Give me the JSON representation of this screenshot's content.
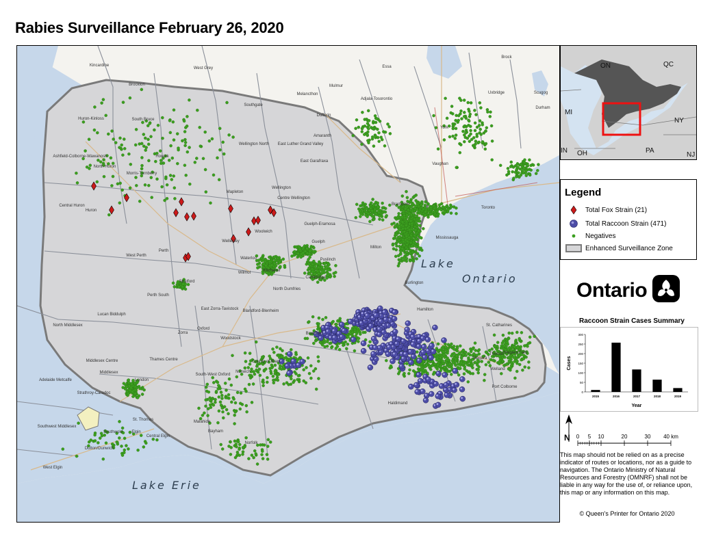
{
  "title": "Rabies Surveillance February 26, 2020",
  "map": {
    "lakes": {
      "ontario": [
        "Lake",
        "Ontario"
      ],
      "erie": "Lake Erie"
    },
    "places": [
      {
        "name": "Kincardine",
        "pos": [
          120,
          30
        ]
      },
      {
        "name": "West Grey",
        "pos": [
          272,
          34
        ]
      },
      {
        "name": "Essa",
        "pos": [
          540,
          32
        ]
      },
      {
        "name": "Brock",
        "pos": [
          715,
          18
        ]
      },
      {
        "name": "Brockton",
        "pos": [
          175,
          58
        ]
      },
      {
        "name": "Mulmur",
        "pos": [
          466,
          60
        ]
      },
      {
        "name": "Melancthon",
        "pos": [
          424,
          72
        ]
      },
      {
        "name": "Adjala-Tosorontio",
        "pos": [
          525,
          79
        ]
      },
      {
        "name": "Uxbridge",
        "pos": [
          700,
          70
        ]
      },
      {
        "name": "Scugog",
        "pos": [
          765,
          70
        ]
      },
      {
        "name": "Durham",
        "pos": [
          768,
          92
        ]
      },
      {
        "name": "Southgate",
        "pos": [
          345,
          88
        ]
      },
      {
        "name": "Dufferin",
        "pos": [
          448,
          103
        ]
      },
      {
        "name": "Huron-Kinloss",
        "pos": [
          108,
          108
        ]
      },
      {
        "name": "South Bruce",
        "pos": [
          184,
          109
        ]
      },
      {
        "name": "York",
        "pos": [
          624,
          121
        ]
      },
      {
        "name": "Amaranth",
        "pos": [
          446,
          133
        ]
      },
      {
        "name": "Wellington North",
        "pos": [
          346,
          145
        ]
      },
      {
        "name": "East Luther Grand Valley",
        "pos": [
          414,
          145
        ]
      },
      {
        "name": "Ashfield-Colborne-Wawanosh",
        "pos": [
          92,
          163
        ]
      },
      {
        "name": "Howick",
        "pos": [
          212,
          163
        ]
      },
      {
        "name": "East Garafraxa",
        "pos": [
          434,
          170
        ]
      },
      {
        "name": "Vaughan",
        "pos": [
          618,
          174
        ]
      },
      {
        "name": "North Huron",
        "pos": [
          128,
          178
        ]
      },
      {
        "name": "Morris-Turnberry",
        "pos": [
          182,
          188
        ]
      },
      {
        "name": "Mapleton",
        "pos": [
          318,
          215
        ]
      },
      {
        "name": "Wellington",
        "pos": [
          386,
          209
        ]
      },
      {
        "name": "Centre Wellington",
        "pos": [
          404,
          224
        ]
      },
      {
        "name": "Brampton",
        "pos": [
          560,
          233
        ]
      },
      {
        "name": "Toronto",
        "pos": [
          688,
          238
        ]
      },
      {
        "name": "Central Huron",
        "pos": [
          80,
          235
        ]
      },
      {
        "name": "Huron",
        "pos": [
          108,
          242
        ]
      },
      {
        "name": "Guelph-Eramosa",
        "pos": [
          442,
          262
        ]
      },
      {
        "name": "Woolwich",
        "pos": [
          360,
          273
        ]
      },
      {
        "name": "Mississauga",
        "pos": [
          628,
          282
        ]
      },
      {
        "name": "Guelph",
        "pos": [
          440,
          288
        ]
      },
      {
        "name": "Milton",
        "pos": [
          524,
          296
        ]
      },
      {
        "name": "Wellesley",
        "pos": [
          312,
          287
        ]
      },
      {
        "name": "Perth",
        "pos": [
          214,
          301
        ]
      },
      {
        "name": "West Perth",
        "pos": [
          174,
          308
        ]
      },
      {
        "name": "Waterloo",
        "pos": [
          338,
          312
        ]
      },
      {
        "name": "Puslinch",
        "pos": [
          454,
          314
        ]
      },
      {
        "name": "Kitchener",
        "pos": [
          372,
          330
        ]
      },
      {
        "name": "Wilmot",
        "pos": [
          332,
          333
        ]
      },
      {
        "name": "Cambridge",
        "pos": [
          436,
          340
        ]
      },
      {
        "name": "Burlington",
        "pos": [
          580,
          348
        ]
      },
      {
        "name": "Stratford",
        "pos": [
          248,
          346
        ]
      },
      {
        "name": "North Dumfries",
        "pos": [
          394,
          357
        ]
      },
      {
        "name": "Perth South",
        "pos": [
          206,
          366
        ]
      },
      {
        "name": "Hamilton",
        "pos": [
          596,
          387
        ]
      },
      {
        "name": "East Zorra-Tavistock",
        "pos": [
          296,
          386
        ]
      },
      {
        "name": "Blandford-Blenheim",
        "pos": [
          356,
          389
        ]
      },
      {
        "name": "Lucan Biddulph",
        "pos": [
          138,
          394
        ]
      },
      {
        "name": "North Middlesex",
        "pos": [
          74,
          410
        ]
      },
      {
        "name": "St. Catharines",
        "pos": [
          704,
          410
        ]
      },
      {
        "name": "Oxford",
        "pos": [
          272,
          415
        ]
      },
      {
        "name": "Zorra",
        "pos": [
          242,
          421
        ]
      },
      {
        "name": "Brantford",
        "pos": [
          434,
          422
        ]
      },
      {
        "name": "Woodstock",
        "pos": [
          312,
          429
        ]
      },
      {
        "name": "Niagara Falls",
        "pos": [
          728,
          450
        ]
      },
      {
        "name": "Thames Centre",
        "pos": [
          214,
          460
        ]
      },
      {
        "name": "County of Brant",
        "pos": [
          364,
          463
        ]
      },
      {
        "name": "Thorold",
        "pos": [
          700,
          452
        ]
      },
      {
        "name": "Niagara",
        "pos": [
          676,
          458
        ]
      },
      {
        "name": "Middlesex Centre",
        "pos": [
          124,
          462
        ]
      },
      {
        "name": "Welland",
        "pos": [
          702,
          474
        ]
      },
      {
        "name": "Norwich",
        "pos": [
          330,
          478
        ]
      },
      {
        "name": "South-West Oxford",
        "pos": [
          286,
          482
        ]
      },
      {
        "name": "Middlesex",
        "pos": [
          134,
          479
        ]
      },
      {
        "name": "Adelaide Metcalfe",
        "pos": [
          56,
          490
        ]
      },
      {
        "name": "London",
        "pos": [
          182,
          490
        ]
      },
      {
        "name": "Port Colborne",
        "pos": [
          712,
          500
        ]
      },
      {
        "name": "Strathroy-Caradoc",
        "pos": [
          112,
          509
        ]
      },
      {
        "name": "Haldimand",
        "pos": [
          556,
          524
        ]
      },
      {
        "name": "Southwest Middlesex",
        "pos": [
          58,
          558
        ]
      },
      {
        "name": "St. Thomas",
        "pos": [
          184,
          548
        ]
      },
      {
        "name": "Malahide",
        "pos": [
          270,
          551
        ]
      },
      {
        "name": "Southwold",
        "pos": [
          140,
          566
        ]
      },
      {
        "name": "Elgin",
        "pos": [
          174,
          566
        ]
      },
      {
        "name": "Bayham",
        "pos": [
          290,
          565
        ]
      },
      {
        "name": "Central Elgin",
        "pos": [
          206,
          572
        ]
      },
      {
        "name": "Norfolk",
        "pos": [
          342,
          582
        ]
      },
      {
        "name": "Dutton/Dunwich",
        "pos": [
          120,
          590
        ]
      },
      {
        "name": "West Elgin",
        "pos": [
          52,
          618
        ]
      }
    ],
    "fox_cases": [
      [
        112,
        205
      ],
      [
        160,
        222
      ],
      [
        138,
        240
      ],
      [
        240,
        228
      ],
      [
        232,
        244
      ],
      [
        248,
        250
      ],
      [
        258,
        249
      ],
      [
        312,
        238
      ],
      [
        346,
        256
      ],
      [
        352,
        255
      ],
      [
        370,
        240
      ],
      [
        375,
        244
      ],
      [
        316,
        282
      ],
      [
        338,
        272
      ],
      [
        246,
        310
      ],
      [
        250,
        308
      ]
    ],
    "colors": {
      "fox": "#cc1a1a",
      "raccoon": "#4c4ca6",
      "negative": "#3b9e1f",
      "zone": "#808080",
      "land": "#f4f3ef",
      "water": "#c6d7ea"
    }
  },
  "inset": {
    "labels": [
      "ON",
      "QC",
      "MI",
      "NY",
      "OH",
      "PA",
      "NJ",
      "IN"
    ]
  },
  "legend": {
    "title": "Legend",
    "fox": "Total Fox Strain (21)",
    "raccoon": "Total Raccoon Strain (471)",
    "negatives": "Negatives",
    "zone": "Enhanced Surveillance Zone"
  },
  "logo": {
    "text": "Ontario"
  },
  "summary": {
    "title": "Raccoon Strain Cases Summary"
  },
  "chart_data": {
    "type": "bar",
    "title": "Raccoon Strain Cases Summary",
    "categories": [
      "2015",
      "2016",
      "2017",
      "2018",
      "2019"
    ],
    "values": [
      10,
      257,
      117,
      64,
      20
    ],
    "xlabel": "Year",
    "ylabel": "Cases",
    "ylim": [
      0,
      300
    ],
    "yticks": [
      0,
      50,
      100,
      150,
      200,
      250,
      300
    ],
    "grid": false,
    "color": "#000000"
  },
  "north": {
    "label": "N"
  },
  "scale": {
    "ticks": [
      "0",
      "5",
      "10",
      "20",
      "30",
      "40 km"
    ]
  },
  "disclaimer": "This map should not be relied on as a precise indicator of routes or locations, nor as a guide to navigation. The Ontario Ministry of Natural Resources and Forestry (OMNRF) shall not be liable in any way for the use of, or reliance upon, this map or any information on this map.",
  "copyright": "© Queen's Printer for Ontario 2020"
}
